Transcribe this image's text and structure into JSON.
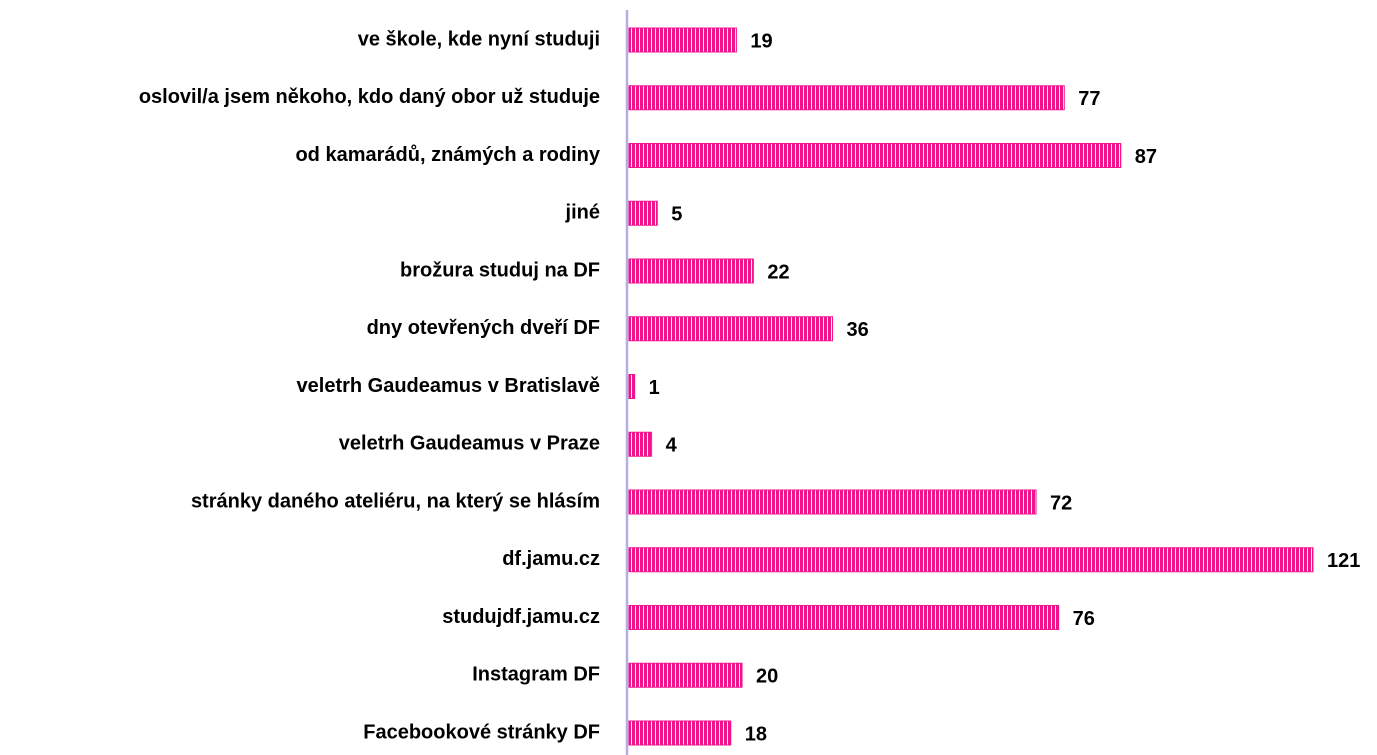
{
  "chart_data": {
    "type": "bar",
    "orientation": "horizontal",
    "categories": [
      "ve škole, kde nyní studuji",
      "oslovil/a jsem někoho, kdo daný obor už studuje",
      "od kamarádů, známých a rodiny",
      "jiné",
      "brožura studuj na DF",
      "dny otevřených dveří DF",
      "veletrh Gaudeamus v Bratislavě",
      "veletrh Gaudeamus v Praze",
      "stránky daného ateliéru, na který se hlásím",
      "df.jamu.cz",
      "studujdf.jamu.cz",
      "Instagram DF",
      "Facebookové stránky DF"
    ],
    "values": [
      19,
      77,
      87,
      5,
      22,
      36,
      1,
      4,
      72,
      121,
      76,
      20,
      18
    ],
    "color": "#f0148c"
  }
}
